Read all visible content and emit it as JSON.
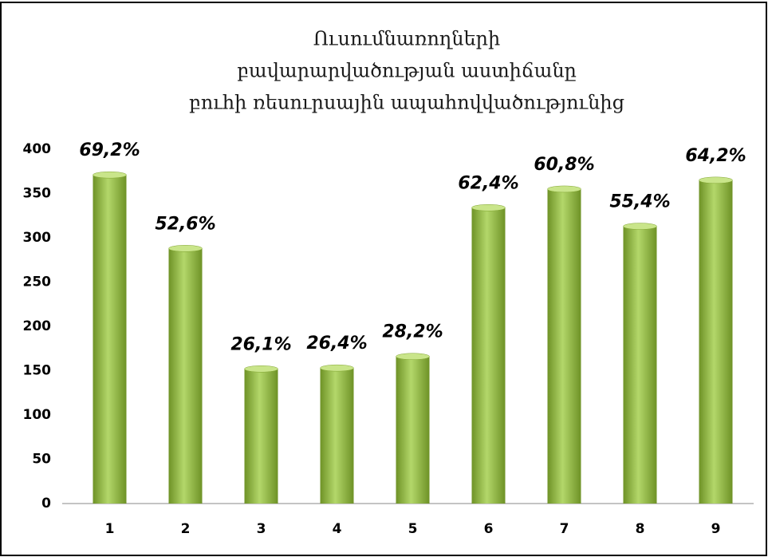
{
  "chart_data": {
    "type": "bar",
    "title": [
      "Ուսումնառողների",
      "բավարարվածության աստիճանը",
      "բուհի ռեսուրսային ապահովվածությունից"
    ],
    "categories": [
      "1",
      "2",
      "3",
      "4",
      "5",
      "6",
      "7",
      "8",
      "9"
    ],
    "values": [
      371,
      288,
      152,
      153,
      166,
      334,
      355,
      313,
      365
    ],
    "annotations": [
      "69,2%",
      "52,6%",
      "26,1%",
      "26,4%",
      "28,2%",
      "62,4%",
      "60,8%",
      "55,4%",
      "64,2%"
    ],
    "color": "#8db33a",
    "ylim": [
      0,
      400
    ],
    "yticks": [
      0,
      50,
      100,
      150,
      200,
      250,
      300,
      350,
      400
    ],
    "grid": false
  }
}
